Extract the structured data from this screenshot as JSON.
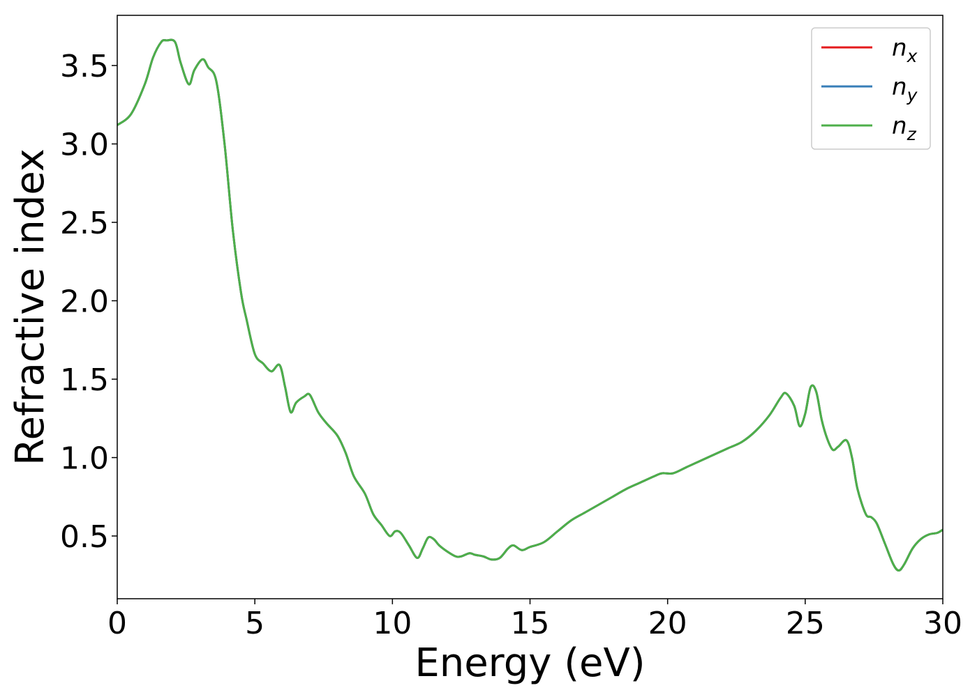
{
  "chart_data": {
    "type": "line",
    "title": "",
    "xlabel": "Energy (eV)",
    "ylabel": "Refractive index",
    "xlim": [
      0,
      30
    ],
    "ylim": [
      0.1,
      3.82
    ],
    "xticks": [
      0,
      5,
      10,
      15,
      20,
      25,
      30
    ],
    "xtick_labels": [
      "0",
      "5",
      "10",
      "15",
      "20",
      "25",
      "30"
    ],
    "yticks": [
      0.5,
      1.0,
      1.5,
      2.0,
      2.5,
      3.0,
      3.5
    ],
    "ytick_labels": [
      "0.5",
      "1.0",
      "1.5",
      "2.0",
      "2.5",
      "3.0",
      "3.5"
    ],
    "grid": false,
    "legend_position": "top-right",
    "series": [
      {
        "name": "n",
        "subscript": "x",
        "color": "#e41a1c"
      },
      {
        "name": "n",
        "subscript": "y",
        "color": "#377eb8"
      },
      {
        "name": "n",
        "subscript": "z",
        "color": "#4daf4a"
      }
    ],
    "x": [
      0,
      0.5,
      1.0,
      1.3,
      1.6,
      1.8,
      2.1,
      2.3,
      2.6,
      2.8,
      3.1,
      3.3,
      3.6,
      3.9,
      4.2,
      4.5,
      4.7,
      5.0,
      5.3,
      5.6,
      5.9,
      6.1,
      6.3,
      6.5,
      6.8,
      7.0,
      7.3,
      7.6,
      8.0,
      8.3,
      8.6,
      9.0,
      9.3,
      9.6,
      9.9,
      10.1,
      10.3,
      10.6,
      10.9,
      11.1,
      11.3,
      11.5,
      11.7,
      12.0,
      12.3,
      12.5,
      12.8,
      13.0,
      13.3,
      13.6,
      13.9,
      14.2,
      14.4,
      14.7,
      15.0,
      15.5,
      16.0,
      16.5,
      17.0,
      17.5,
      18.0,
      18.5,
      19.0,
      19.5,
      19.8,
      20.2,
      20.7,
      21.2,
      21.7,
      22.2,
      22.7,
      23.2,
      23.7,
      24.1,
      24.3,
      24.6,
      24.8,
      25.0,
      25.2,
      25.4,
      25.6,
      25.8,
      26.0,
      26.2,
      26.5,
      26.7,
      26.9,
      27.2,
      27.4,
      27.6,
      27.9,
      28.2,
      28.4,
      28.6,
      28.9,
      29.2,
      29.5,
      29.8,
      30.0
    ],
    "y_common": [
      3.12,
      3.19,
      3.38,
      3.55,
      3.65,
      3.66,
      3.65,
      3.52,
      3.38,
      3.47,
      3.54,
      3.49,
      3.4,
      3.0,
      2.45,
      2.05,
      1.88,
      1.66,
      1.6,
      1.55,
      1.59,
      1.45,
      1.29,
      1.35,
      1.39,
      1.4,
      1.29,
      1.22,
      1.14,
      1.03,
      0.88,
      0.77,
      0.64,
      0.57,
      0.5,
      0.53,
      0.52,
      0.44,
      0.36,
      0.42,
      0.49,
      0.48,
      0.44,
      0.4,
      0.37,
      0.37,
      0.39,
      0.38,
      0.37,
      0.35,
      0.36,
      0.42,
      0.44,
      0.41,
      0.43,
      0.46,
      0.53,
      0.6,
      0.65,
      0.7,
      0.75,
      0.8,
      0.84,
      0.88,
      0.9,
      0.9,
      0.94,
      0.98,
      1.02,
      1.06,
      1.1,
      1.17,
      1.27,
      1.38,
      1.41,
      1.33,
      1.2,
      1.28,
      1.45,
      1.42,
      1.24,
      1.12,
      1.05,
      1.07,
      1.11,
      1.0,
      0.8,
      0.64,
      0.62,
      0.58,
      0.45,
      0.32,
      0.28,
      0.32,
      0.42,
      0.48,
      0.51,
      0.52,
      0.54
    ]
  }
}
